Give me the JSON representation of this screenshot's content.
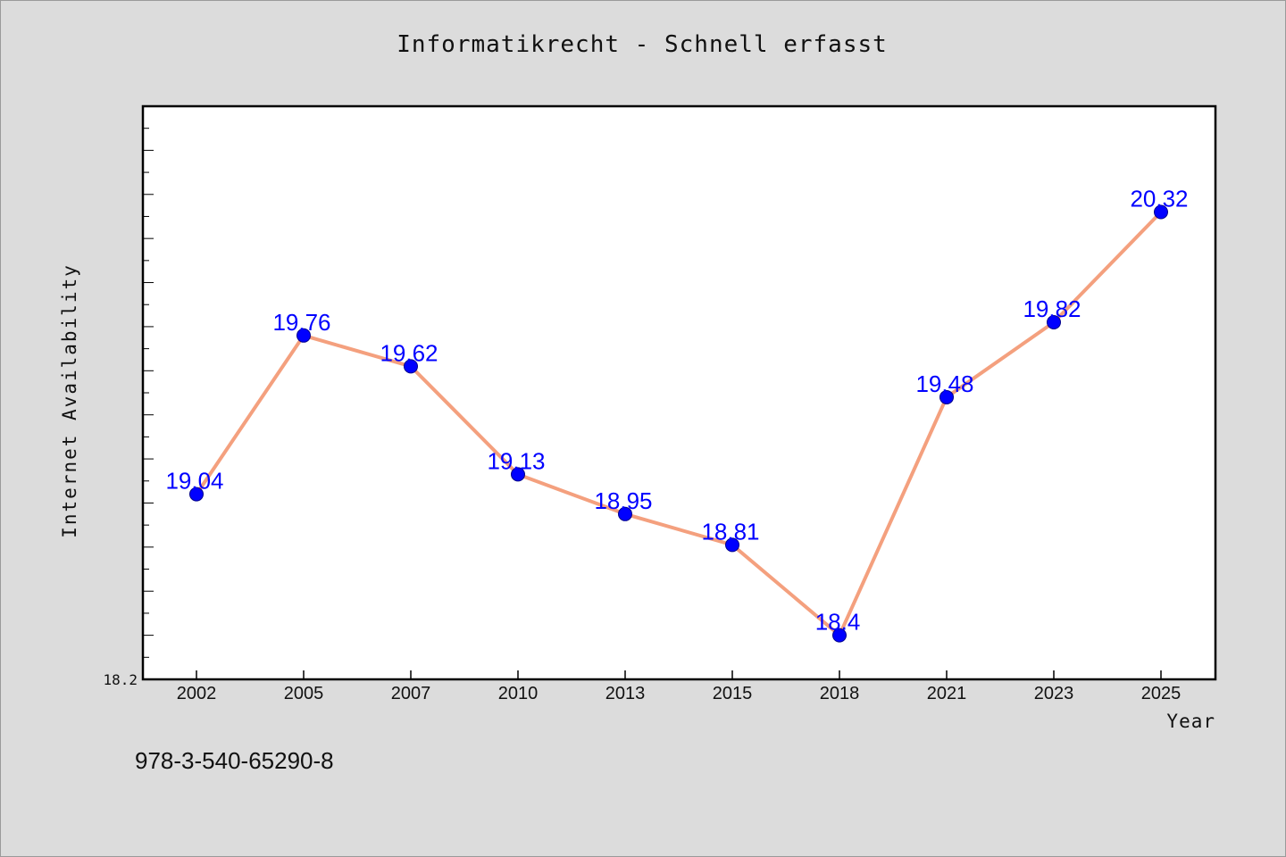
{
  "title": "Informatikrecht - Schnell erfasst",
  "footer_text": "978-3-540-65290-8",
  "colors": {
    "background": "#dcdcdc",
    "plot_background": "#ffffff",
    "line": "#f4a07e",
    "marker": "#0000ff",
    "data_label": "#0000ff"
  },
  "chart_data": {
    "type": "line",
    "title": "Informatikrecht - Schnell erfasst",
    "xlabel": "Year",
    "ylabel": "Internet Availability",
    "categories": [
      "2002",
      "2005",
      "2007",
      "2010",
      "2013",
      "2015",
      "2018",
      "2021",
      "2023",
      "2025"
    ],
    "series": [
      {
        "values": [
          19.04,
          19.76,
          19.62,
          19.13,
          18.95,
          18.81,
          18.4,
          19.48,
          19.82,
          20.32
        ],
        "labels": [
          "19.04",
          "19.76",
          "19.62",
          "19.13",
          "18.95",
          "18.81",
          "18.4",
          "19.48",
          "19.82",
          "20.32"
        ]
      }
    ],
    "ylim": [
      18.2,
      20.8
    ],
    "y_min_label": "18.2",
    "y_tick_step": 0.1,
    "y_major_tick_step": 0.2,
    "grid": false,
    "legend": "none",
    "markers": true,
    "data_labels": true
  }
}
